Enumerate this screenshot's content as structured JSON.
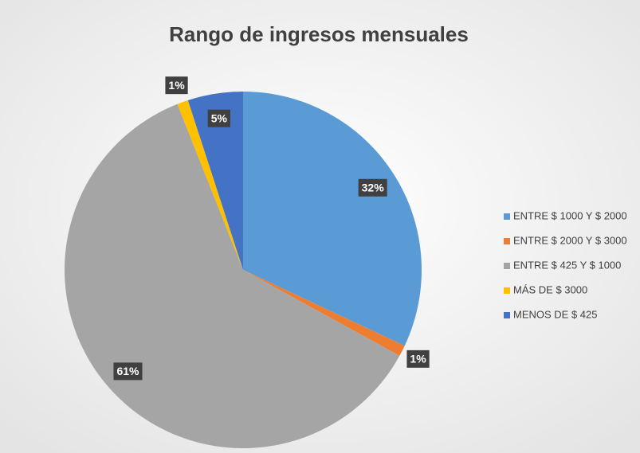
{
  "chart_data": {
    "type": "pie",
    "title": "Rango de ingresos mensuales",
    "categories": [
      "ENTRE $ 1000 Y $ 2000",
      "ENTRE $ 2000 Y $ 3000",
      "ENTRE $ 425 Y $ 1000",
      "MÁS DE $ 3000",
      "MENOS DE $ 425"
    ],
    "values": [
      32,
      1,
      61,
      1,
      5
    ],
    "value_labels": [
      "32%",
      "1%",
      "61%",
      "1%",
      "5%"
    ],
    "colors": [
      "#5b9bd5",
      "#ed7d31",
      "#a5a5a5",
      "#ffc000",
      "#4472c4"
    ],
    "legend": "right"
  }
}
